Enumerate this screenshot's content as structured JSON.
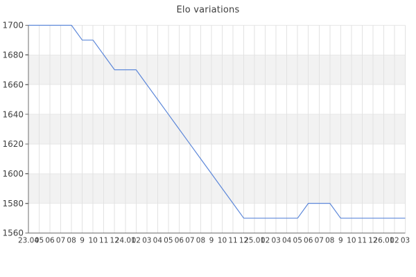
{
  "title": "Elo variations",
  "colors": {
    "background": "#ffffff",
    "line": "#5c87d9",
    "grid": "#e2e2e2",
    "grid_h": "#e7e7e7",
    "band": "#f2f2f2",
    "axis": "#6e6e6e",
    "tick_text": "#3f3f3f",
    "title_text": "#3d3d3d"
  },
  "chart_data": {
    "type": "line",
    "title": "Elo variations",
    "xlabel": "",
    "ylabel": "",
    "legend": "none",
    "grid": true,
    "ylim": [
      1560,
      1700
    ],
    "y_ticks": [
      1560,
      1580,
      1600,
      1620,
      1640,
      1660,
      1680,
      1700
    ],
    "shaded_bands": [
      [
        1660,
        1680
      ],
      [
        1620,
        1640
      ],
      [
        1580,
        1600
      ]
    ],
    "categories": [
      "23.04",
      "05",
      "06",
      "07",
      "08",
      "9",
      "10",
      "11",
      "12",
      "24.01",
      "02",
      "03",
      "04",
      "05",
      "06",
      "07",
      "08",
      "9",
      "10",
      "11",
      "12",
      "25.01",
      "02",
      "03",
      "04",
      "05",
      "06",
      "07",
      "08",
      "9",
      "10",
      "11",
      "12",
      "26.01",
      "02",
      "03"
    ],
    "series": [
      {
        "name": "Elo",
        "values": [
          1700,
          1700,
          1700,
          1700,
          1700,
          1690,
          1690,
          1680,
          1670,
          1670,
          1670,
          1660,
          1650,
          1640,
          1630,
          1620,
          1610,
          1600,
          1590,
          1580,
          1570,
          1570,
          1570,
          1570,
          1570,
          1570,
          1580,
          1580,
          1580,
          1570,
          1570,
          1570,
          1570,
          1570,
          1570,
          1570
        ]
      }
    ]
  }
}
